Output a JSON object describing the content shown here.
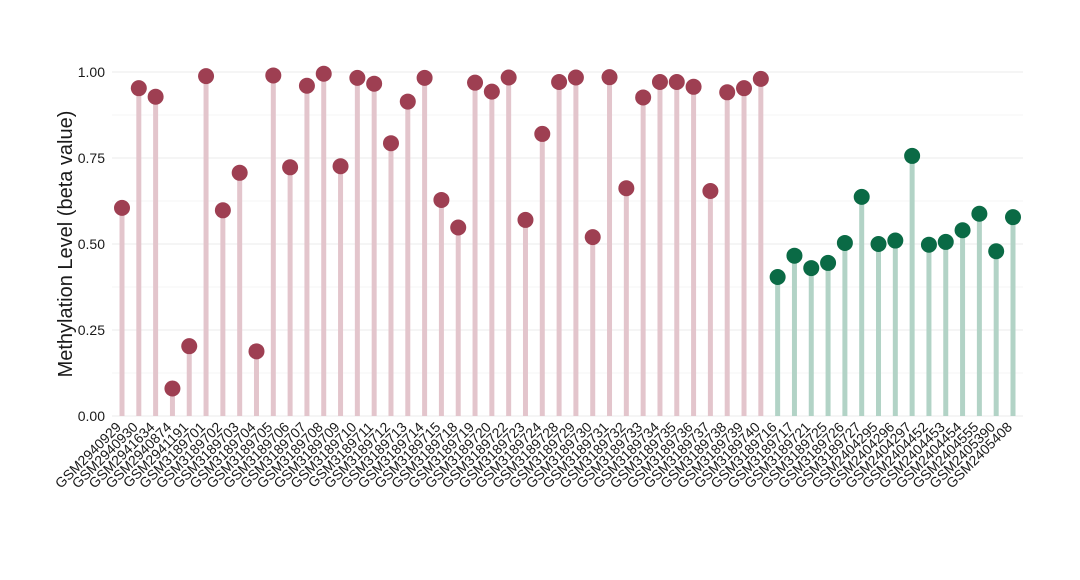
{
  "chart_data": {
    "type": "lollipop",
    "title": "",
    "xlabel": "",
    "ylabel": "Methylation Level (beta value)",
    "ylim": [
      0,
      1
    ],
    "yticks": [
      "0.00",
      "0.25",
      "0.50",
      "0.75",
      "1.00"
    ],
    "grid": true,
    "legend": "none",
    "groups": [
      {
        "color": "#9e3f52",
        "stem_color": "#e3c5cc"
      },
      {
        "color": "#0a6a45",
        "stem_color": "#b2d3c6"
      }
    ],
    "categories": [
      "GSM2940929",
      "GSM2940930",
      "GSM2941634",
      "GSM2940874",
      "GSM2941191",
      "GSM3189701",
      "GSM3189702",
      "GSM3189703",
      "GSM3189704",
      "GSM3189705",
      "GSM3189706",
      "GSM3189707",
      "GSM3189708",
      "GSM3189709",
      "GSM3189710",
      "GSM3189711",
      "GSM3189712",
      "GSM3189713",
      "GSM3189714",
      "GSM3189715",
      "GSM3189718",
      "GSM3189719",
      "GSM3189720",
      "GSM3189722",
      "GSM3189723",
      "GSM3189724",
      "GSM3189728",
      "GSM3189729",
      "GSM3189730",
      "GSM3189731",
      "GSM3189732",
      "GSM3189733",
      "GSM3189734",
      "GSM3189735",
      "GSM3189736",
      "GSM3189737",
      "GSM3189738",
      "GSM3189739",
      "GSM3189740",
      "GSM3189716",
      "GSM3189717",
      "GSM3189721",
      "GSM3189725",
      "GSM3189726",
      "GSM3189727",
      "GSM2404295",
      "GSM2404296",
      "GSM2404297",
      "GSM2404452",
      "GSM2404453",
      "GSM2404454",
      "GSM2404555",
      "GSM2405390",
      "GSM2405408"
    ],
    "values": [
      0.605,
      0.953,
      0.928,
      0.08,
      0.203,
      0.988,
      0.598,
      0.707,
      0.188,
      0.99,
      0.723,
      0.96,
      0.995,
      0.726,
      0.983,
      0.966,
      0.793,
      0.914,
      0.983,
      0.628,
      0.548,
      0.969,
      0.943,
      0.984,
      0.57,
      0.82,
      0.971,
      0.984,
      0.52,
      0.985,
      0.662,
      0.926,
      0.971,
      0.971,
      0.957,
      0.654,
      0.941,
      0.953,
      0.98,
      0.404,
      0.466,
      0.43,
      0.445,
      0.503,
      0.637,
      0.5,
      0.51,
      0.756,
      0.498,
      0.506,
      0.54,
      0.588,
      0.479,
      0.578
    ],
    "group_index": [
      0,
      0,
      0,
      0,
      0,
      0,
      0,
      0,
      0,
      0,
      0,
      0,
      0,
      0,
      0,
      0,
      0,
      0,
      0,
      0,
      0,
      0,
      0,
      0,
      0,
      0,
      0,
      0,
      0,
      0,
      0,
      0,
      0,
      0,
      0,
      0,
      0,
      0,
      0,
      1,
      1,
      1,
      1,
      1,
      1,
      1,
      1,
      1,
      1,
      1,
      1,
      1,
      1,
      1
    ]
  }
}
